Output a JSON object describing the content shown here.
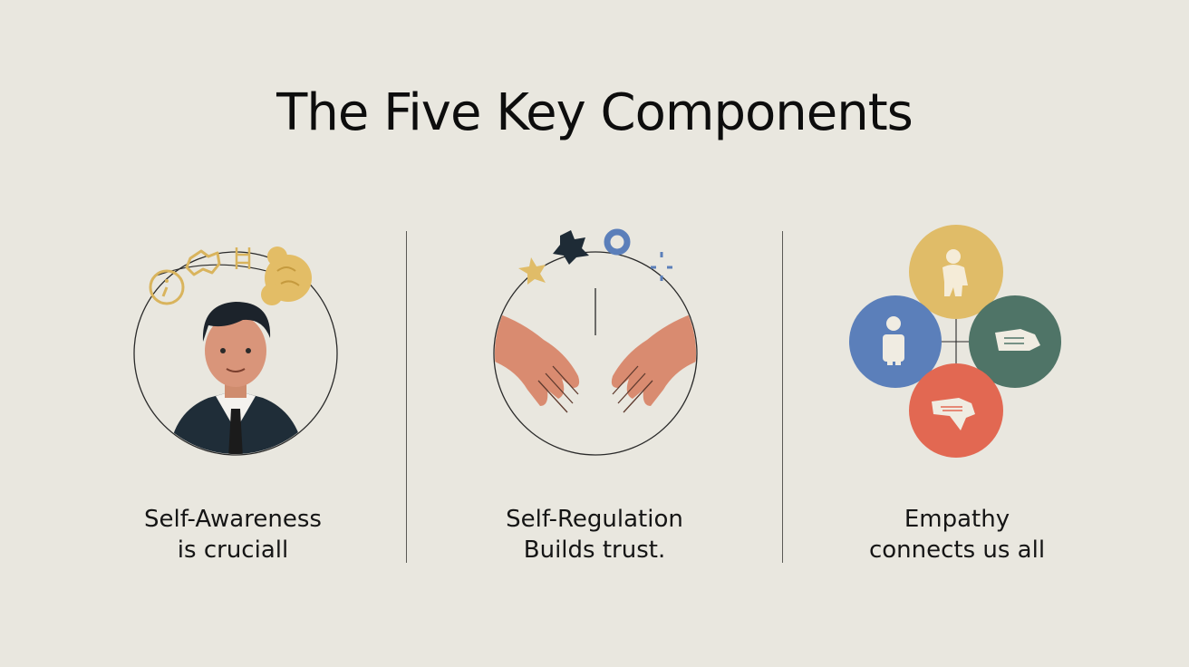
{
  "title": "The Five Key Components",
  "panels": [
    {
      "line1": "Self-Awareness",
      "line2": "is cruciall",
      "icon": "person-thinking-icon"
    },
    {
      "line1": "Self-Regulation",
      "line2": "Builds trust.",
      "icon": "reaching-hands-icon"
    },
    {
      "line1": "Empathy",
      "line2": "connects us all",
      "icon": "connected-people-icon"
    }
  ],
  "colors": {
    "background": "#e9e7df",
    "gold": "#e0bc68",
    "blue": "#5b7fba",
    "teal": "#4f7467",
    "coral": "#e26852",
    "skin": "#d98b70",
    "navy": "#1e2b36"
  }
}
